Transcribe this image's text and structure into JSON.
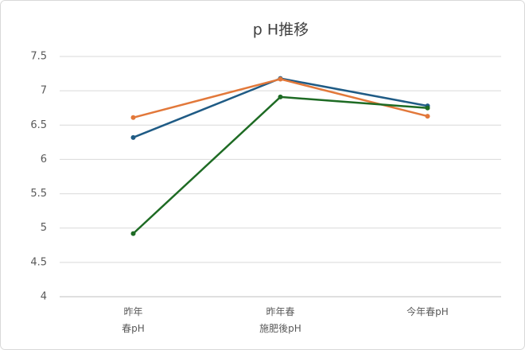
{
  "chart_data": {
    "type": "line",
    "title": "p H推移",
    "categories": [
      "昨年\n春pH",
      "昨年春\n施肥後pH",
      "今年春pH"
    ],
    "series": [
      {
        "color": "#1f5b85",
        "values": [
          6.32,
          7.18,
          6.78
        ]
      },
      {
        "color": "#e2783a",
        "values": [
          6.61,
          7.17,
          6.63
        ]
      },
      {
        "color": "#1e6b24",
        "values": [
          4.92,
          6.91,
          6.75
        ]
      }
    ],
    "ylim": [
      4,
      7.5
    ],
    "yticks": [
      4,
      4.5,
      5,
      5.5,
      6,
      6.5,
      7,
      7.5
    ],
    "grid": true
  }
}
